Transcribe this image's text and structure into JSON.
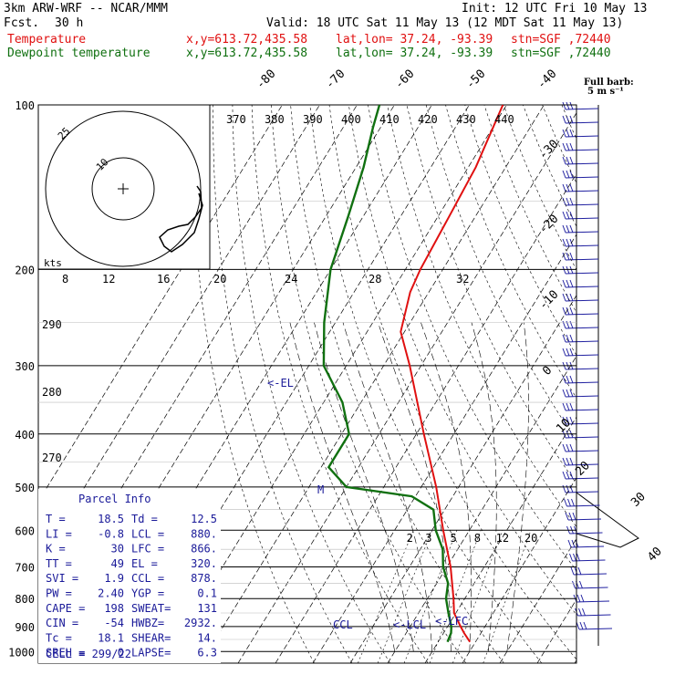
{
  "header": {
    "model": "3km ARW-WRF -- NCAR/MMM",
    "init": "Init: 12 UTC Fri 10 May 13",
    "fcst_label": "Fcst.",
    "fcst_value": "30 h",
    "valid": "Valid: 18 UTC Sat 11 May 13 (12 MDT Sat 11 May 13)",
    "temp_label": "Temperature",
    "dew_label": "Dewpoint temperature",
    "xy": "x,y=613.72,435.58",
    "latlon": "lat,lon= 37.24, -93.39",
    "stn": "stn=SGF ,72440",
    "barb_note_1": "Full barb:",
    "barb_note_2": "5 m s⁻¹"
  },
  "colors": {
    "temperature": "#e01010",
    "dewpoint": "#107010",
    "isobar": "#000000",
    "text_blue": "#1a1a99"
  },
  "chart_data": {
    "type": "line",
    "title": "",
    "xlabel": "",
    "ylabel": "",
    "pressure_levels": [
      "100",
      "200",
      "300",
      "400",
      "500",
      "600",
      "700",
      "800",
      "900",
      "1000"
    ],
    "isotherm_labels": [
      "-80",
      "-70",
      "-60",
      "-50",
      "-40",
      "-30",
      "-20",
      "-10",
      "0",
      "10",
      "20",
      "30",
      "40"
    ],
    "theta_labels": [
      "370",
      "380",
      "390",
      "400",
      "410",
      "420",
      "430",
      "440"
    ],
    "theta_labels_left": [
      "290",
      "280",
      "270"
    ],
    "mixing_ratio_labels": [
      "2",
      "3",
      "5",
      "8",
      "12",
      "20"
    ],
    "hodograph": {
      "speed_unit": "kts",
      "ring_labels": [
        "25",
        "10"
      ],
      "axis_labels": [
        "8",
        "12",
        "16",
        "20",
        "24",
        "28",
        "32"
      ]
    },
    "series": [
      {
        "name": "Temperature",
        "color": "#e01010",
        "points": [
          {
            "p": 960,
            "t": 18.5
          },
          {
            "p": 925,
            "t": 15.5
          },
          {
            "p": 900,
            "t": 13.5
          },
          {
            "p": 850,
            "t": 9.5
          },
          {
            "p": 800,
            "t": 7.0
          },
          {
            "p": 700,
            "t": 1.0
          },
          {
            "p": 600,
            "t": -7.0
          },
          {
            "p": 500,
            "t": -16.0
          },
          {
            "p": 400,
            "t": -28.0
          },
          {
            "p": 300,
            "t": -43.0
          },
          {
            "p": 260,
            "t": -51.0
          },
          {
            "p": 220,
            "t": -55.0
          },
          {
            "p": 200,
            "t": -56.0
          },
          {
            "p": 160,
            "t": -57.0
          },
          {
            "p": 130,
            "t": -58.0
          },
          {
            "p": 100,
            "t": -61.0
          }
        ]
      },
      {
        "name": "Dewpoint temperature",
        "color": "#107010",
        "points": [
          {
            "p": 960,
            "t": 12.5
          },
          {
            "p": 925,
            "t": 12.0
          },
          {
            "p": 900,
            "t": 11.0
          },
          {
            "p": 850,
            "t": 8.0
          },
          {
            "p": 800,
            "t": 5.0
          },
          {
            "p": 750,
            "t": 3.0
          },
          {
            "p": 700,
            "t": -1.0
          },
          {
            "p": 650,
            "t": -4.0
          },
          {
            "p": 600,
            "t": -9.0
          },
          {
            "p": 550,
            "t": -13.0
          },
          {
            "p": 520,
            "t": -21.0
          },
          {
            "p": 500,
            "t": -40.0
          },
          {
            "p": 460,
            "t": -48.0
          },
          {
            "p": 400,
            "t": -48.0
          },
          {
            "p": 350,
            "t": -55.0
          },
          {
            "p": 300,
            "t": -66.0
          },
          {
            "p": 250,
            "t": -73.0
          },
          {
            "p": 200,
            "t": -80.0
          },
          {
            "p": 160,
            "t": -84.0
          },
          {
            "p": 130,
            "t": -88.0
          },
          {
            "p": 110,
            "t": -92.0
          },
          {
            "p": 100,
            "t": -94.0
          }
        ]
      }
    ],
    "annotations": [
      "<-EL",
      "M",
      "CCL",
      "<-LCL",
      "<-LFC"
    ],
    "grid": true
  },
  "parcel": {
    "title": "Parcel Info",
    "rows": [
      [
        "T  =",
        "18.5",
        "Td =",
        "12.5"
      ],
      [
        "LI =",
        "-0.8",
        "LCL =",
        "880."
      ],
      [
        "K  =",
        "30",
        "LFC =",
        "866."
      ],
      [
        "TT =",
        "49",
        "EL  =",
        "320."
      ],
      [
        "SVI =",
        "1.9",
        "CCL =",
        "878."
      ],
      [
        "PW =",
        "2.40",
        "YGP =",
        "0.1"
      ],
      [
        "CAPE =",
        "198",
        "SWEAT=",
        "131"
      ],
      [
        "CIN  =",
        "-54",
        "HWBZ=",
        "2932."
      ],
      [
        "Tc =",
        "18.1",
        "SHEAR=",
        "14."
      ],
      [
        "SREH =",
        "0",
        "LAPSE=",
        "6.3"
      ]
    ],
    "cell": "CELL = 299/22"
  }
}
